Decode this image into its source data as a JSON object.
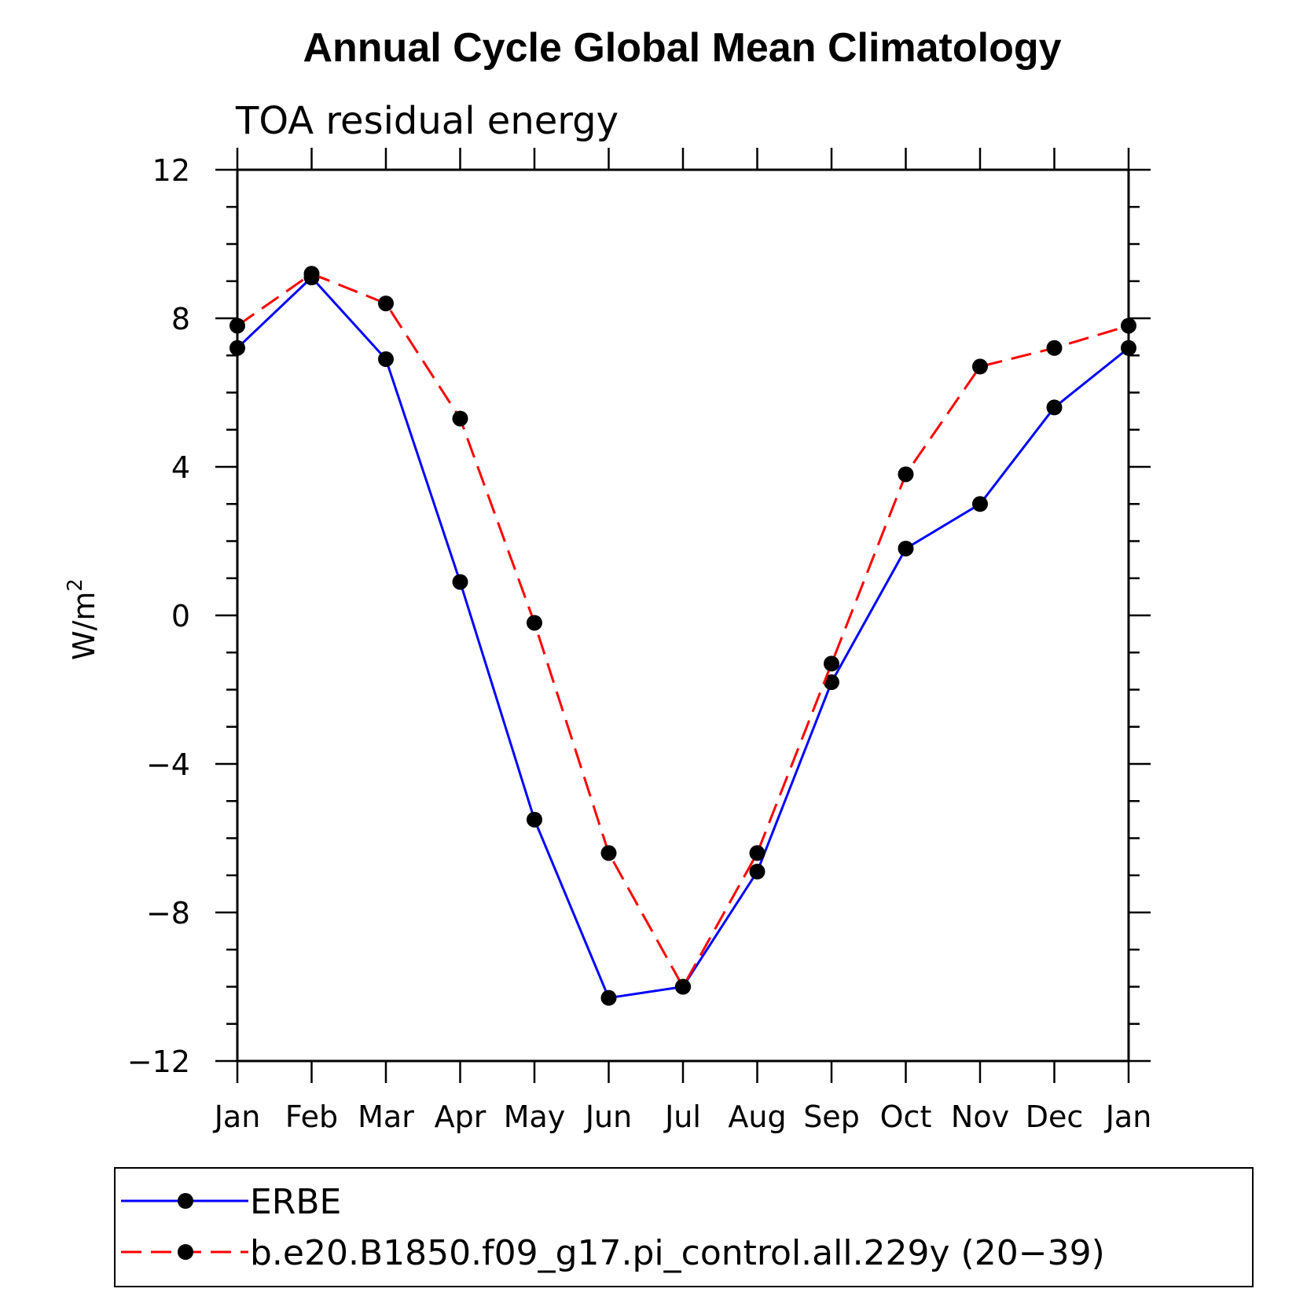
{
  "chart_data": {
    "type": "line",
    "title": "Annual Cycle Global Mean Climatology",
    "subtitle": "TOA residual energy",
    "ylabel_base": "W/m",
    "ylabel_sup": "2",
    "xlabel": "",
    "categories": [
      "Jan",
      "Feb",
      "Mar",
      "Apr",
      "May",
      "Jun",
      "Jul",
      "Aug",
      "Sep",
      "Oct",
      "Nov",
      "Dec",
      "Jan"
    ],
    "ylim": [
      -12,
      12
    ],
    "yticks": [
      -12,
      -8,
      -4,
      0,
      4,
      8,
      12
    ],
    "ytick_labels": [
      "−12",
      "−8",
      "−4",
      "0",
      "4",
      "8",
      "12"
    ],
    "grid": false,
    "legend_position": "bottom",
    "series": [
      {
        "name": "ERBE",
        "color": "#0000ff",
        "dash": "solid",
        "marker": "filled-circle",
        "values": [
          7.2,
          9.1,
          6.9,
          0.9,
          -5.5,
          -10.3,
          -10.0,
          -6.9,
          -1.8,
          1.8,
          3.0,
          5.6,
          7.2
        ]
      },
      {
        "name": "b.e20.B1850.f09_g17.pi_control.all.229y (20−39)",
        "color": "#ff0000",
        "dash": "dashed",
        "marker": "filled-circle",
        "values": [
          7.8,
          9.2,
          8.4,
          5.3,
          -0.2,
          -6.4,
          -10.0,
          -6.4,
          -1.3,
          3.8,
          6.7,
          7.2,
          7.8
        ]
      }
    ]
  }
}
